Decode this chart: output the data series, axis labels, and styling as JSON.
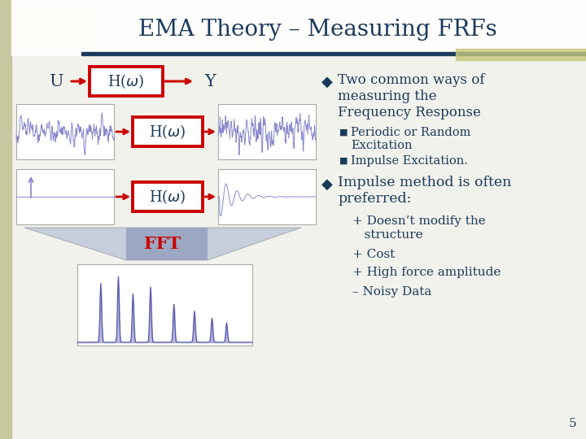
{
  "title": "EMA Theory – Measuring FRFs",
  "title_color": "#1a3a5c",
  "title_fontsize": 20,
  "bg_color": "#f2f2ec",
  "left_accent_color": "#b8b87a",
  "top_accent_color": "#1a3a5c",
  "slide_number": "5",
  "block_color_border": "#cc0000",
  "arrow_color": "#cc0000",
  "fft_color": "#cc0000",
  "text_color": "#1a3a5c",
  "wave_color": "#8888cc",
  "frf_color": "#5555aa",
  "U_label": "U",
  "Y_label": "Y",
  "FFT_label": "FFT",
  "bullet1_text": "Two common ways of\nmeasuring the\nFrequency Response",
  "sub_bullet1a": "Periodic or Random",
  "sub_bullet1b": "Excitation",
  "sub_bullet2": "Impulse Excitation.",
  "bullet2_text": "Impulse method is often\npreferred:",
  "plus1a": "+ Doesn’t modify the",
  "plus1b": "   structure",
  "plus2": "+ Cost",
  "plus3": "+ High force amplitude",
  "minus1": "– Noisy Data"
}
